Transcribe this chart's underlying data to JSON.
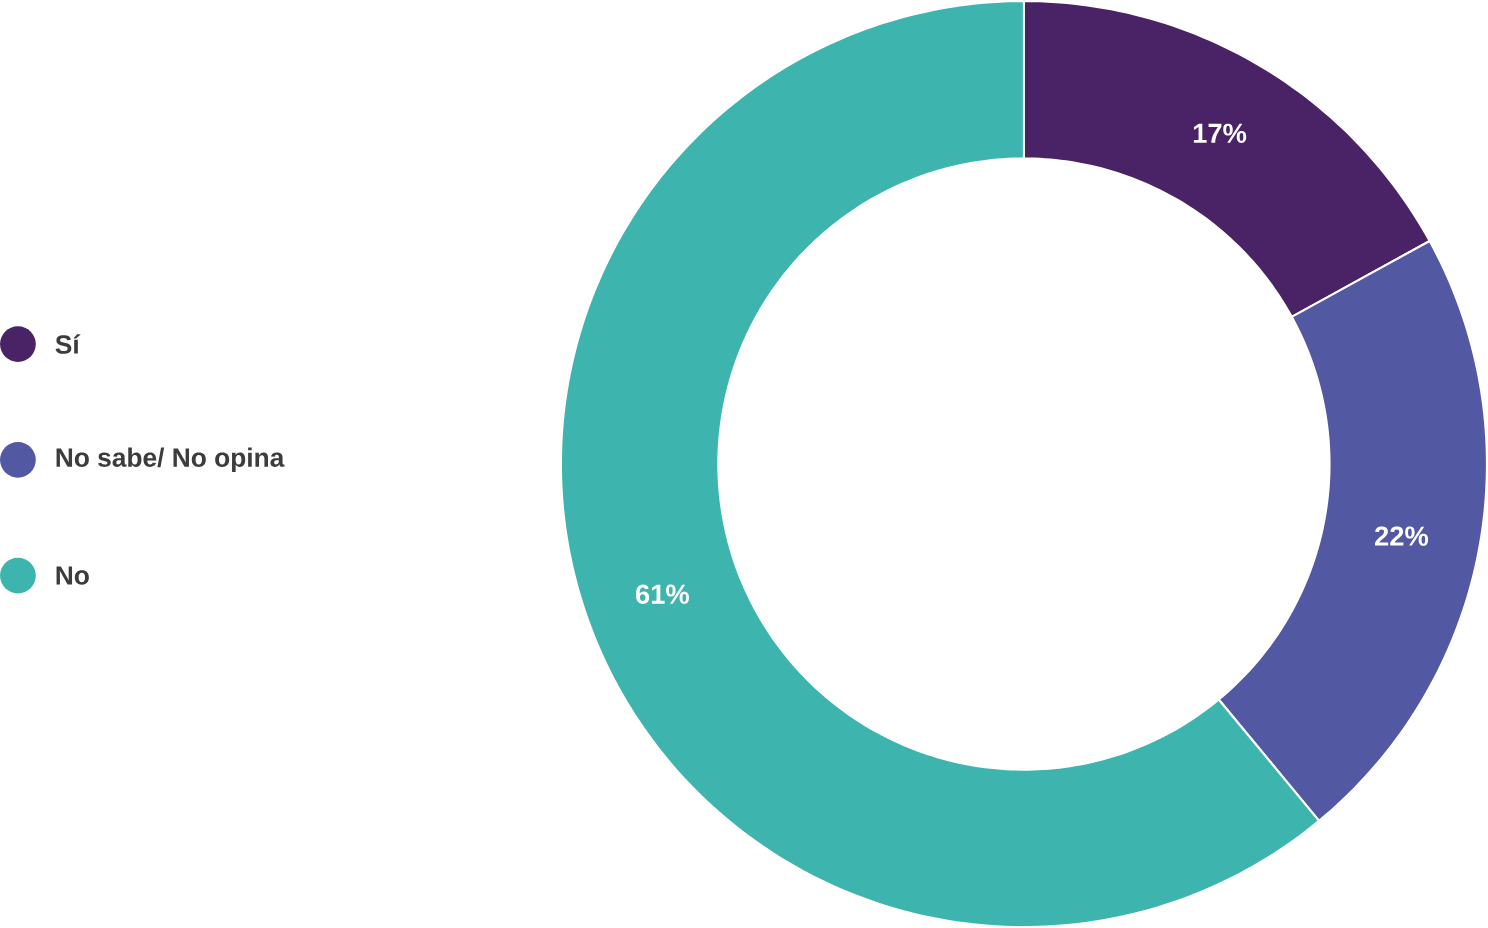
{
  "chart_data": {
    "type": "donut",
    "categories": [
      "Sí",
      "No sabe/ No opina",
      "No"
    ],
    "values": [
      17,
      22,
      61
    ],
    "colors": [
      "#4a2366",
      "#5358a3",
      "#3db5ae"
    ],
    "value_labels": [
      "17%",
      "22%",
      "61%"
    ],
    "legend": "left"
  }
}
